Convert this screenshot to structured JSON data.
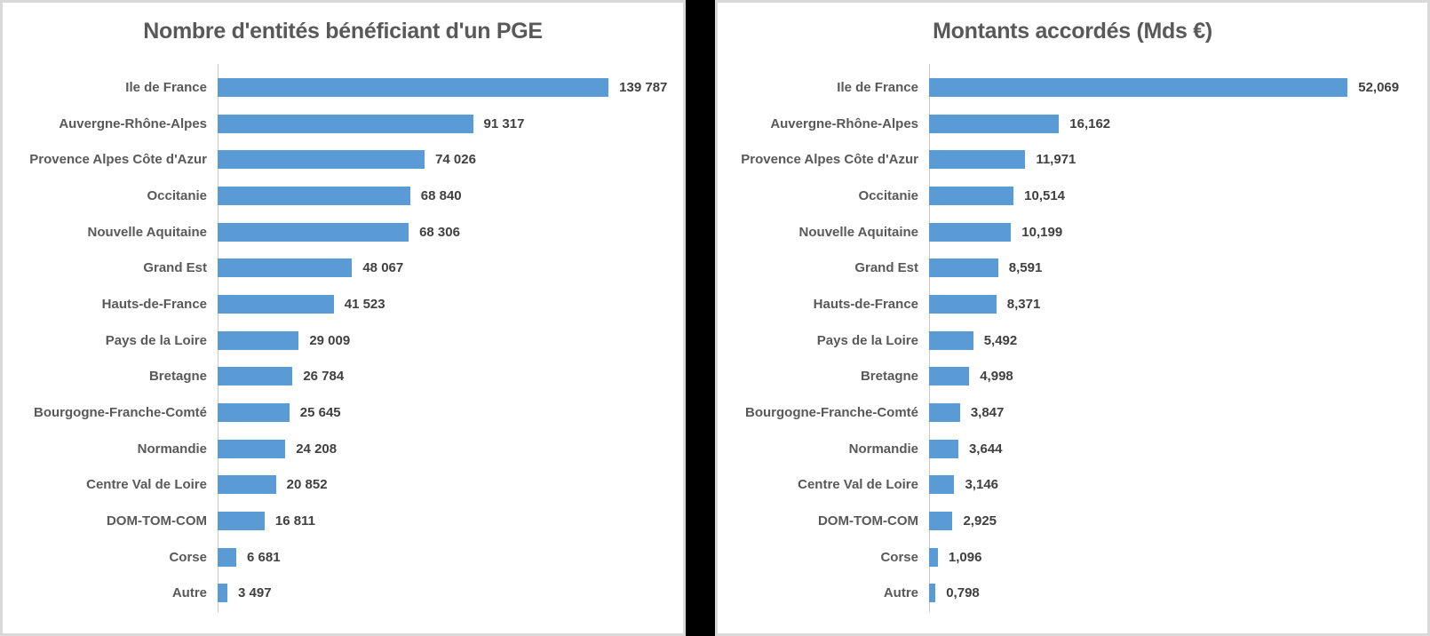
{
  "page": {
    "background_color": "#000000",
    "panel_background": "#FFFFFF",
    "panel_border_color": "#D9D9D9"
  },
  "style": {
    "bar_color": "#5B9BD5",
    "title_color": "#595959",
    "category_label_color": "#595959",
    "value_label_color": "#404040",
    "axis_line_color": "#C9C9C9"
  },
  "chart_data": [
    {
      "type": "bar",
      "orientation": "horizontal",
      "title": "Nombre d'entités bénéficiant d'un PGE",
      "categories": [
        "Ile de France",
        "Auvergne-Rhône-Alpes",
        "Provence Alpes Côte d'Azur",
        "Occitanie",
        "Nouvelle Aquitaine",
        "Grand Est",
        "Hauts-de-France",
        "Pays de la Loire",
        "Bretagne",
        "Bourgogne-Franche-Comté",
        "Normandie",
        "Centre Val de Loire",
        "DOM-TOM-COM",
        "Corse",
        "Autre"
      ],
      "values": [
        139787,
        91317,
        74026,
        68840,
        68306,
        48067,
        41523,
        29009,
        26784,
        25645,
        24208,
        20852,
        16811,
        6681,
        3497
      ],
      "value_labels": [
        "139 787",
        "91 317",
        "74 026",
        "68 840",
        "68 306",
        "48 067",
        "41 523",
        "29 009",
        "26 784",
        "25 645",
        "24 208",
        "20 852",
        "16 811",
        "6 681",
        "3 497"
      ],
      "xlabel": "",
      "ylabel": "",
      "xlim": [
        0,
        139787
      ],
      "grid": false,
      "legend": false,
      "sorted": "descending",
      "max_bar_fraction": 0.84
    },
    {
      "type": "bar",
      "orientation": "horizontal",
      "title": "Montants accordés (Mds €)",
      "categories": [
        "Ile de France",
        "Auvergne-Rhône-Alpes",
        "Provence Alpes Côte d'Azur",
        "Occitanie",
        "Nouvelle Aquitaine",
        "Grand Est",
        "Hauts-de-France",
        "Pays de la Loire",
        "Bretagne",
        "Bourgogne-Franche-Comté",
        "Normandie",
        "Centre Val de Loire",
        "DOM-TOM-COM",
        "Corse",
        "Autre"
      ],
      "values": [
        52.069,
        16.162,
        11.971,
        10.514,
        10.199,
        8.591,
        8.371,
        5.492,
        4.998,
        3.847,
        3.644,
        3.146,
        2.925,
        1.096,
        0.798
      ],
      "value_labels": [
        "52,069",
        "16,162",
        "11,971",
        "10,514",
        "10,199",
        "8,591",
        "8,371",
        "5,492",
        "4,998",
        "3,847",
        "3,644",
        "3,146",
        "2,925",
        "1,096",
        "0,798"
      ],
      "xlabel": "",
      "ylabel": "",
      "xlim": [
        0,
        52.069
      ],
      "grid": false,
      "legend": false,
      "sorted": "descending",
      "max_bar_fraction": 0.84
    }
  ]
}
